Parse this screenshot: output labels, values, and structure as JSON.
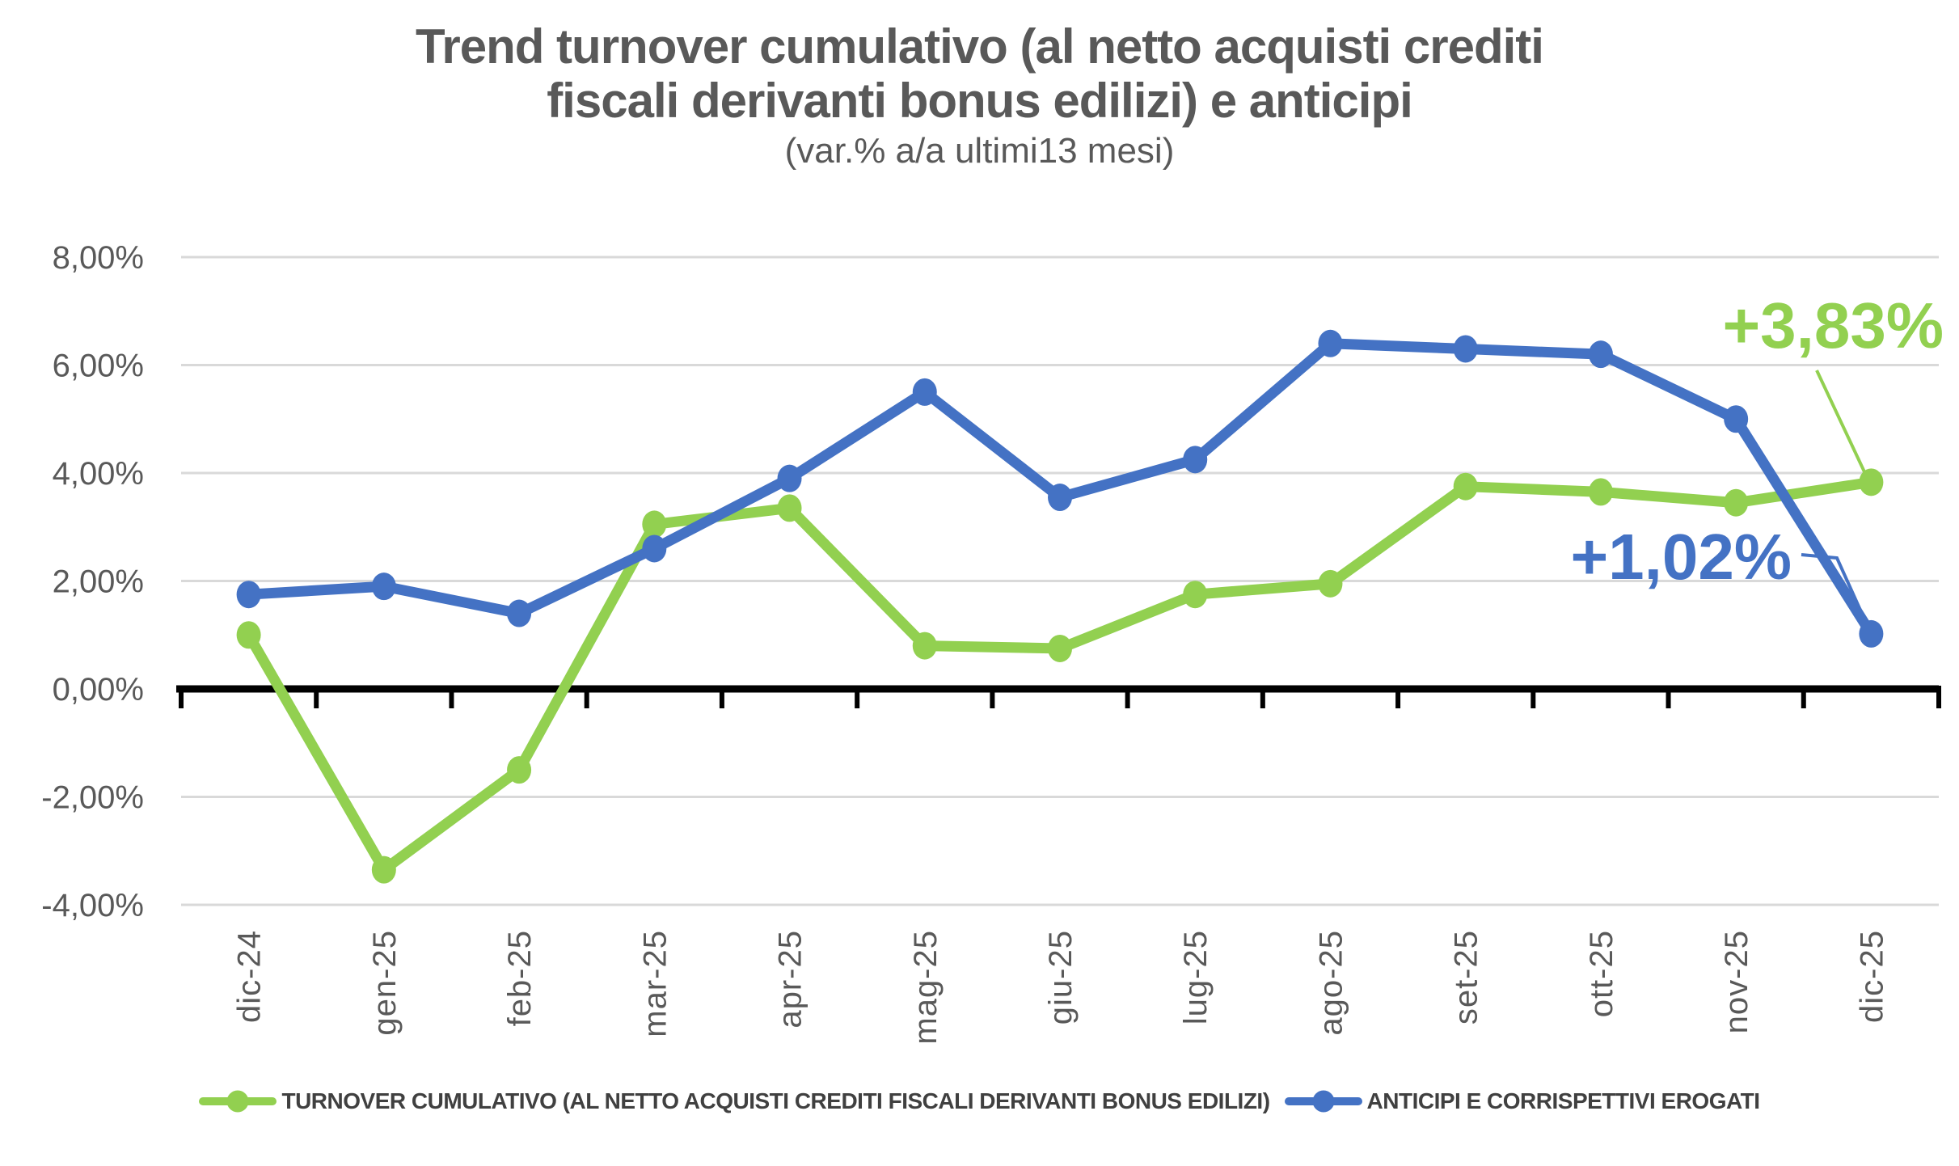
{
  "title": {
    "line1": "Trend turnover cumulativo (al netto acquisti crediti",
    "line2": "fiscali derivanti  bonus edilizi) e anticipi",
    "subtitle": "(var.% a/a ultimi13 mesi)"
  },
  "colors": {
    "green": "#92D050",
    "blue": "#4472C4",
    "grid": "#D9D9D9",
    "axis": "#000000",
    "label_text": "#595959",
    "legend_text": "#404040",
    "background": "#FFFFFF"
  },
  "chart_data": {
    "type": "line",
    "title": "Trend turnover cumulativo (al netto acquisti crediti fiscali derivanti  bonus edilizi) e anticipi",
    "subtitle": "(var.% a/a ultimi13 mesi)",
    "categories": [
      "dic-24",
      "gen-25",
      "feb-25",
      "mar-25",
      "apr-25",
      "mag-25",
      "giu-25",
      "lug-25",
      "ago-25",
      "set-25",
      "ott-25",
      "nov-25",
      "dic-25"
    ],
    "series": [
      {
        "name": "TURNOVER CUMULATIVO (AL NETTO ACQUISTI CREDITI FISCALI DERIVANTI BONUS EDILIZI)",
        "color_key": "green",
        "values": [
          1.0,
          -3.35,
          -1.5,
          3.05,
          3.35,
          0.8,
          0.75,
          1.75,
          1.95,
          3.75,
          3.65,
          3.45,
          3.83
        ]
      },
      {
        "name": "ANTICIPI E CORRISPETTIVI EROGATI",
        "color_key": "blue",
        "values": [
          1.75,
          1.9,
          1.4,
          2.6,
          3.9,
          5.5,
          3.55,
          4.25,
          6.4,
          6.3,
          6.2,
          5.0,
          1.02
        ]
      }
    ],
    "ylim": [
      -4,
      8
    ],
    "yticks": [
      {
        "value": 8,
        "label": "8,00%"
      },
      {
        "value": 6,
        "label": "6,00%"
      },
      {
        "value": 4,
        "label": "4,00%"
      },
      {
        "value": 2,
        "label": "2,00%"
      },
      {
        "value": 0,
        "label": "0,00%"
      },
      {
        "value": -2,
        "label": "-2,00%"
      },
      {
        "value": -4,
        "label": "-4,00%"
      }
    ],
    "grid": true,
    "legend_position": "bottom",
    "annotations": [
      {
        "text": "+3,83%",
        "color_key": "green",
        "series_index": 0,
        "category": "dic-25"
      },
      {
        "text": "+1,02%",
        "color_key": "blue",
        "series_index": 1,
        "category": "dic-25"
      }
    ]
  }
}
